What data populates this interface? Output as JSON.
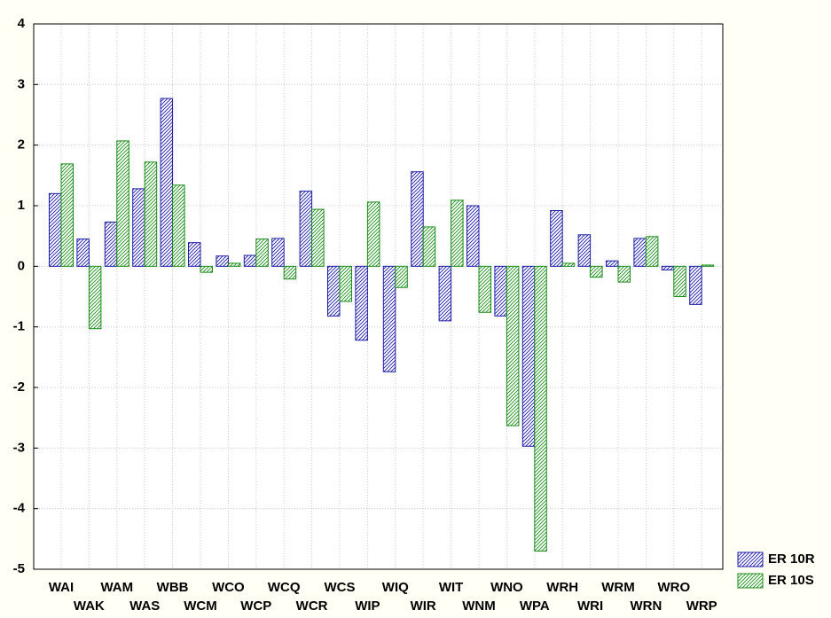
{
  "chart_data": {
    "type": "bar",
    "categories": [
      "WAI",
      "WAK",
      "WAM",
      "WAS",
      "WBB",
      "WCM",
      "WCO",
      "WCP",
      "WCQ",
      "WCR",
      "WCS",
      "WIP",
      "WIQ",
      "WIR",
      "WIT",
      "WNM",
      "WNO",
      "WPA",
      "WRH",
      "WRI",
      "WRM",
      "WRN",
      "WRO",
      "WRP"
    ],
    "series": [
      {
        "name": "ER 10R",
        "color": "#1c1ca8",
        "values": [
          1.2,
          0.45,
          0.73,
          1.28,
          2.77,
          0.39,
          0.17,
          0.18,
          0.46,
          1.24,
          -0.82,
          -1.22,
          -1.74,
          1.56,
          -0.9,
          1.0,
          -0.82,
          -2.97,
          0.92,
          0.52,
          0.09,
          0.46,
          -0.06,
          -0.63
        ]
      },
      {
        "name": "ER 10S",
        "color": "#1a8c1a",
        "values": [
          1.69,
          -1.03,
          2.07,
          1.72,
          1.34,
          -0.1,
          0.05,
          0.45,
          -0.21,
          0.94,
          -0.58,
          1.06,
          -0.35,
          0.65,
          1.09,
          -0.76,
          -2.63,
          -4.7,
          0.05,
          -0.18,
          -0.26,
          0.49,
          -0.5,
          0.02
        ]
      }
    ],
    "ylim": [
      -5,
      4
    ],
    "yticks": [
      -5,
      -4,
      -3,
      -2,
      -1,
      0,
      1,
      2,
      3,
      4
    ],
    "grid": true,
    "legend": "bottom-right"
  }
}
